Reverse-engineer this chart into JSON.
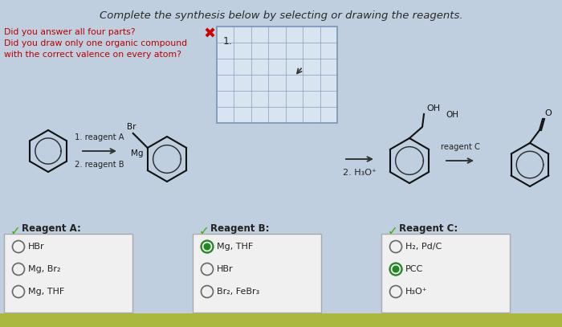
{
  "title": "Complete the synthesis below by selecting or drawing the reagents.",
  "title_fontsize": 9.5,
  "title_color": "#2a2a2a",
  "bg_color": "#bfcfdf",
  "warning_text": "Did you answer all four parts?\nDid you draw only one organic compound\nwith the correct valence on every atom?",
  "warning_color": "#bb0000",
  "warning_fontsize": 7.8,
  "reagent_A_options": [
    "HBr",
    "Mg, Br₂",
    "Mg, THF"
  ],
  "reagent_A_selected": -1,
  "reagent_B_options": [
    "Mg, THF",
    "HBr",
    "Br₂, FeBr₃"
  ],
  "reagent_B_selected": 0,
  "reagent_C_options": [
    "H₂, Pd/C",
    "PCC",
    "H₃O⁺"
  ],
  "reagent_C_selected": 1,
  "box_color": "#f0f0f0",
  "check_color": "#44aa00",
  "grid_color": "#8899bb",
  "grid_bg": "#d8e4f0",
  "mol_color": "#111111"
}
